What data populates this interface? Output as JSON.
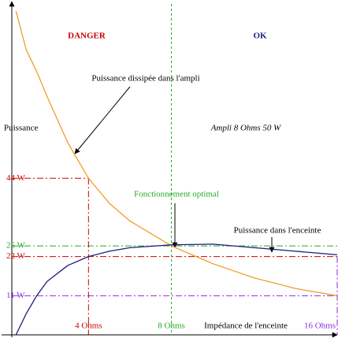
{
  "chart_data": {
    "type": "line",
    "subtitle": "Ampli 8 Ohms 50 W",
    "xlabel": "Impédance de l'enceinte",
    "ylabel": "Puissance",
    "annotations": {
      "danger": "DANGER",
      "ok": "OK",
      "optimal": "Fonctionnement optimal"
    },
    "x": [
      0.5,
      1,
      1.5,
      2,
      3,
      4,
      5,
      6,
      8,
      10,
      12,
      14,
      16
    ],
    "series": [
      {
        "name": "Puissance dissipée dans l'ampli",
        "color": "#f39c2a",
        "values": [
          91,
          80,
          74,
          67,
          54,
          44,
          37,
          32,
          25,
          20,
          16,
          13,
          11
        ]
      },
      {
        "name": "Puissance dans l'enceinte",
        "color": "#1a1a80",
        "values": [
          0,
          6,
          11,
          15,
          19.5,
          22,
          23.5,
          24.5,
          25.3,
          25.5,
          24.5,
          23.5,
          22.5
        ]
      }
    ],
    "xlim": [
      0.3,
      16
    ],
    "ylim": [
      0,
      93
    ],
    "xticks": [
      {
        "value": 4,
        "label": "4 Ohms",
        "color": "#cc0000"
      },
      {
        "value": 8,
        "label": "8 Ohms",
        "color": "#22aa22"
      },
      {
        "value": 16,
        "label": "16 Ohms",
        "color": "#8a2be2"
      }
    ],
    "yticks": [
      {
        "value": 11,
        "label": "11 W",
        "color": "#8a2be2"
      },
      {
        "value": 22,
        "label": "22 W",
        "color": "#cc0000"
      },
      {
        "value": 25,
        "label": "25 W",
        "color": "#22aa22"
      },
      {
        "value": 44,
        "label": "44 W",
        "color": "#cc0000"
      }
    ]
  }
}
